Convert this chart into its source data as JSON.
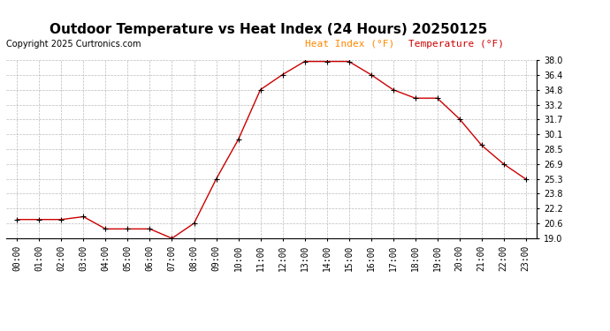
{
  "title": "Outdoor Temperature vs Heat Index (24 Hours) 20250125",
  "copyright": "Copyright 2025 Curtronics.com",
  "legend_heat": "Heat Index (°F)",
  "legend_temp": "Temperature (°F)",
  "hours": [
    0,
    1,
    2,
    3,
    4,
    5,
    6,
    7,
    8,
    9,
    10,
    11,
    12,
    13,
    14,
    15,
    16,
    17,
    18,
    19,
    20,
    21,
    22,
    23
  ],
  "temperature": [
    21.0,
    21.0,
    21.0,
    21.3,
    20.0,
    20.0,
    20.0,
    19.0,
    20.6,
    25.3,
    29.5,
    34.8,
    36.4,
    37.8,
    37.8,
    37.8,
    36.4,
    34.8,
    33.9,
    33.9,
    31.7,
    28.9,
    26.9,
    25.3
  ],
  "heat_index": [
    21.0,
    21.0,
    21.0,
    21.3,
    20.0,
    20.0,
    20.0,
    19.0,
    20.6,
    25.3,
    29.5,
    34.8,
    36.4,
    37.8,
    37.8,
    37.8,
    36.4,
    34.8,
    33.9,
    33.9,
    31.7,
    28.9,
    26.9,
    23.8
  ],
  "ylim_min": 19.0,
  "ylim_max": 38.0,
  "yticks": [
    19.0,
    20.6,
    22.2,
    23.8,
    25.3,
    26.9,
    28.5,
    30.1,
    31.7,
    33.2,
    34.8,
    36.4,
    38.0
  ],
  "line_color": "#cc0000",
  "marker_color": "#000000",
  "heat_index_label_color": "#ff8800",
  "temp_label_color": "#cc0000",
  "bg_color": "#ffffff",
  "grid_color": "#bbbbbb",
  "title_fontsize": 11,
  "copyright_fontsize": 7,
  "legend_fontsize": 8,
  "tick_fontsize": 7,
  "ytick_fontsize": 7
}
